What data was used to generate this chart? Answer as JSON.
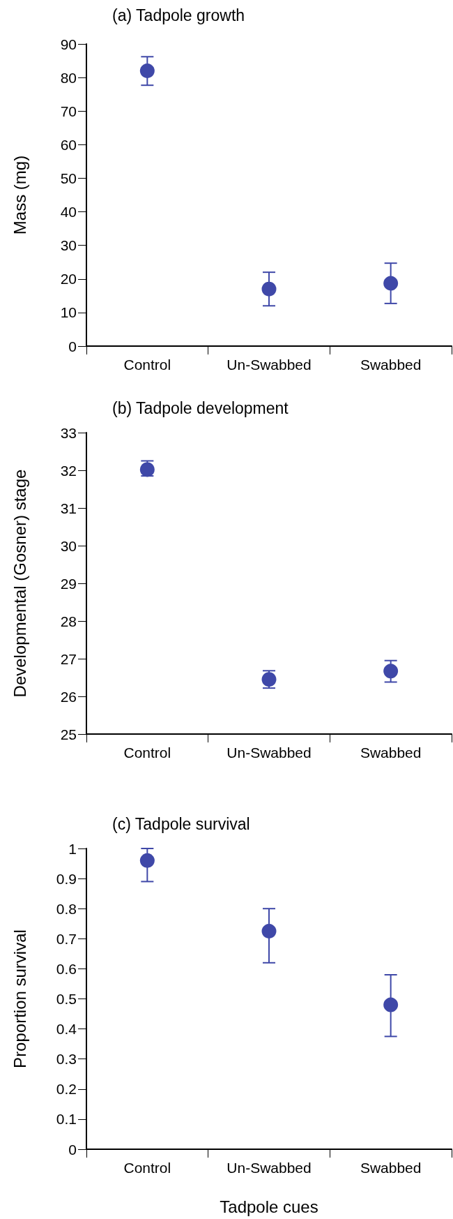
{
  "chart_data": [
    {
      "type": "scatter",
      "title": "(a) Tadpole growth",
      "ylabel": "Mass (mg)",
      "categories": [
        "Control",
        "Un-Swabbed",
        "Swabbed"
      ],
      "values": [
        82,
        17,
        18.7
      ],
      "errors": [
        [
          77.7,
          86.2
        ],
        [
          12,
          22
        ],
        [
          12.7,
          24.7
        ]
      ],
      "color": "#3f48a8",
      "marker": "circle",
      "ylim": [
        0,
        90
      ],
      "yticks": [
        0,
        10,
        20,
        30,
        40,
        50,
        60,
        70,
        80,
        90
      ],
      "grid": false
    },
    {
      "type": "scatter",
      "title": "(b) Tadpole development",
      "ylabel": "Developmental (Gosner) stage",
      "categories": [
        "Control",
        "Un-Swabbed",
        "Swabbed"
      ],
      "values": [
        32.02,
        26.45,
        26.67
      ],
      "errors": [
        [
          31.85,
          32.25
        ],
        [
          26.22,
          26.68
        ],
        [
          26.38,
          26.95
        ]
      ],
      "color": "#3f48a8",
      "marker": "circle",
      "ylim": [
        25,
        33
      ],
      "yticks": [
        25,
        26,
        27,
        28,
        29,
        30,
        31,
        32,
        33
      ],
      "grid": false
    },
    {
      "type": "scatter",
      "title": "(c) Tadpole survival",
      "ylabel": "Proportion survival",
      "xlabel": "Tadpole cues",
      "categories": [
        "Control",
        "Un-Swabbed",
        "Swabbed"
      ],
      "values": [
        0.96,
        0.725,
        0.48
      ],
      "errors": [
        [
          0.89,
          1.0
        ],
        [
          0.62,
          0.8
        ],
        [
          0.375,
          0.58
        ]
      ],
      "color": "#3f48a8",
      "marker": "circle",
      "ylim": [
        0,
        1
      ],
      "yticks": [
        0,
        0.1,
        0.2,
        0.3,
        0.4,
        0.5,
        0.6,
        0.7,
        0.8,
        0.9,
        1
      ],
      "grid": false
    }
  ]
}
